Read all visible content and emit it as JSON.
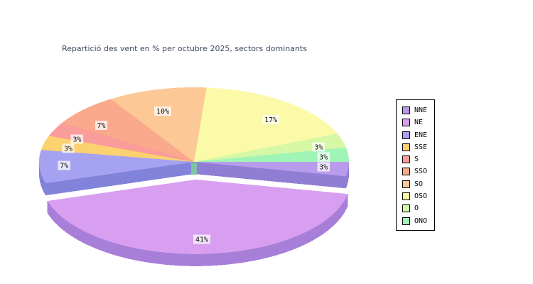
{
  "title": "Repartició des vent en % per octubre 2025, sectors dominants",
  "chart_data": {
    "type": "pie",
    "style": "3d-exploded",
    "title": "Repartició des vent en % per octubre 2025, sectors dominants",
    "categories": [
      "NNE",
      "NE",
      "ENE",
      "SSE",
      "S",
      "SSO",
      "SO",
      "OSO",
      "O",
      "ONO"
    ],
    "values": [
      3,
      41,
      7,
      3,
      3,
      7,
      10,
      17,
      3,
      3
    ],
    "unit": "%",
    "slice_labels": [
      "3%",
      "41%",
      "7%",
      "3%",
      "3%",
      "7%",
      "10%",
      "17%",
      "3%",
      "3%"
    ],
    "colors": [
      "#b89ceb",
      "#d89ff0",
      "#a6a2f2",
      "#fcd170",
      "#f99c9a",
      "#faa98c",
      "#fcc896",
      "#fafaa8",
      "#d6f8a6",
      "#a0f4b6"
    ],
    "exploded_slice": "NE",
    "start_angle_deg": 0,
    "direction": "clockwise",
    "legend_position": "right",
    "legend_items": [
      "NNE",
      "NE",
      "ENE",
      "SSE",
      "S",
      "SSO",
      "SO",
      "OSO",
      "O",
      "ONO"
    ]
  },
  "theme": {
    "background": "#ffffff",
    "title_color": "#3d4a63",
    "label_bg": "rgba(255,255,255,0.72)",
    "label_text": "#111111",
    "legend_border": "#000000"
  }
}
